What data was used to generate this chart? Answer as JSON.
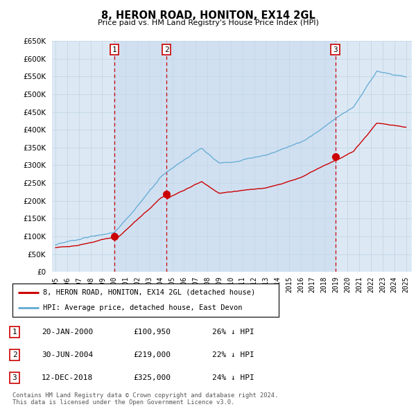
{
  "title": "8, HERON ROAD, HONITON, EX14 2GL",
  "subtitle": "Price paid vs. HM Land Registry's House Price Index (HPI)",
  "ylim": [
    0,
    650000
  ],
  "yticks": [
    0,
    50000,
    100000,
    150000,
    200000,
    250000,
    300000,
    350000,
    400000,
    450000,
    500000,
    550000,
    600000,
    650000
  ],
  "ytick_labels": [
    "£0",
    "£50K",
    "£100K",
    "£150K",
    "£200K",
    "£250K",
    "£300K",
    "£350K",
    "£400K",
    "£450K",
    "£500K",
    "£550K",
    "£600K",
    "£650K"
  ],
  "background_color": "#ffffff",
  "plot_bg_color": "#dce9f5",
  "grid_color": "#c8d8e8",
  "hpi_color": "#6baed6",
  "price_color": "#cc0000",
  "vline_color": "#cc0000",
  "shade_color": "#ccd9ea",
  "transactions": [
    {
      "num": 1,
      "date_x": 2000.055,
      "price": 100950,
      "label": "20-JAN-2000",
      "price_str": "£100,950",
      "hpi_pct": "26% ↓ HPI"
    },
    {
      "num": 2,
      "date_x": 2004.497,
      "price": 219000,
      "label": "30-JUN-2004",
      "price_str": "£219,000",
      "hpi_pct": "22% ↓ HPI"
    },
    {
      "num": 3,
      "date_x": 2018.95,
      "price": 325000,
      "label": "12-DEC-2018",
      "price_str": "£325,000",
      "hpi_pct": "24% ↓ HPI"
    }
  ],
  "footer_text": "Contains HM Land Registry data © Crown copyright and database right 2024.\nThis data is licensed under the Open Government Licence v3.0.",
  "legend_entries": [
    "8, HERON ROAD, HONITON, EX14 2GL (detached house)",
    "HPI: Average price, detached house, East Devon"
  ],
  "xlim_left": 1994.7,
  "xlim_right": 2025.5,
  "xtick_years": [
    1995,
    1996,
    1997,
    1998,
    1999,
    2000,
    2001,
    2002,
    2003,
    2004,
    2005,
    2006,
    2007,
    2008,
    2009,
    2010,
    2011,
    2012,
    2013,
    2014,
    2015,
    2016,
    2017,
    2018,
    2019,
    2020,
    2021,
    2022,
    2023,
    2024,
    2025
  ]
}
